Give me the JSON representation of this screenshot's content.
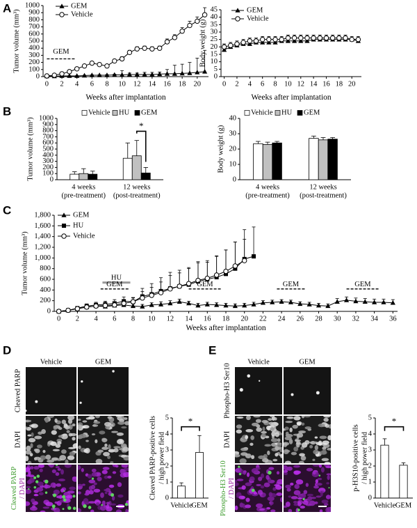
{
  "figure": {
    "panel_labels": [
      "A",
      "B",
      "C",
      "D",
      "E"
    ],
    "micrographs": [
      {
        "columns": [
          "Vehicle",
          "GEM"
        ],
        "rows": [
          "Cleaved PARP",
          "DAPI"
        ],
        "merge_labels": [
          "Cleaved PARP",
          "/ DAPI"
        ]
      },
      {
        "columns": [
          "Vehicle",
          "GEM"
        ],
        "rows": [
          "Phospho-H3 Ser10",
          "DAPI"
        ],
        "merge_labels": [
          "Phospho-H3 Ser10",
          "/ DAPI"
        ]
      }
    ]
  },
  "chart_data": [
    {
      "type": "line",
      "ylabel": "Tumor volume (mm³)",
      "xlabel": "Weeks after implantation",
      "x": [
        0,
        1,
        2,
        3,
        4,
        5,
        6,
        7,
        8,
        9,
        10,
        11,
        12,
        13,
        14,
        15,
        16,
        17,
        18,
        19,
        20,
        21
      ],
      "xlim": [
        -0.5,
        21.5
      ],
      "xticks": [
        0,
        2,
        4,
        6,
        8,
        10,
        12,
        14,
        16,
        18,
        20
      ],
      "ylim": [
        0,
        1000
      ],
      "yticks": [
        0,
        100,
        200,
        300,
        400,
        500,
        600,
        700,
        800,
        900,
        1000
      ],
      "series": [
        {
          "name": "GEM",
          "color": "#000000",
          "marker": "triangle",
          "values": [
            5,
            5,
            10,
            10,
            10,
            15,
            20,
            20,
            20,
            25,
            25,
            30,
            30,
            30,
            30,
            35,
            40,
            40,
            45,
            50,
            60,
            70
          ],
          "errors": [
            2,
            2,
            3,
            3,
            4,
            5,
            5,
            6,
            8,
            10,
            60,
            20,
            20,
            30,
            30,
            30,
            60,
            120,
            130,
            150,
            200,
            300
          ]
        },
        {
          "name": "Vehicle",
          "color": "#000000",
          "marker": "circle",
          "values": [
            10,
            20,
            40,
            70,
            110,
            150,
            190,
            170,
            150,
            220,
            250,
            340,
            390,
            400,
            390,
            400,
            490,
            550,
            640,
            720,
            780,
            870
          ],
          "errors": [
            3,
            5,
            8,
            10,
            15,
            15,
            20,
            20,
            20,
            25,
            30,
            30,
            30,
            30,
            30,
            30,
            40,
            40,
            50,
            60,
            60,
            100
          ]
        }
      ],
      "annotations": [
        "GEM"
      ]
    },
    {
      "type": "line",
      "ylabel": "Body weight (g)",
      "xlabel": "Weeks after implantation",
      "x": [
        0,
        1,
        2,
        3,
        4,
        5,
        6,
        7,
        8,
        9,
        10,
        11,
        12,
        13,
        14,
        15,
        16,
        17,
        18,
        19,
        20,
        21
      ],
      "xlim": [
        -0.5,
        21.5
      ],
      "xticks": [
        0,
        2,
        4,
        6,
        8,
        10,
        12,
        14,
        16,
        18,
        20
      ],
      "ylim": [
        0,
        45
      ],
      "yticks": [
        0,
        5,
        10,
        15,
        20,
        25,
        30,
        35,
        40,
        45
      ],
      "series": [
        {
          "name": "GEM",
          "color": "#000000",
          "marker": "triangle",
          "values": [
            18,
            20,
            21,
            22,
            22,
            23,
            23,
            23,
            23,
            24,
            24,
            24,
            24,
            24,
            25,
            25,
            25,
            25,
            25,
            25,
            25,
            24
          ],
          "errors": [
            1,
            1,
            1,
            1,
            1,
            1,
            1,
            1,
            1,
            1,
            1,
            1,
            1,
            1,
            1,
            1,
            1,
            1,
            1,
            1,
            1,
            1
          ]
        },
        {
          "name": "Vehicle",
          "color": "#000000",
          "marker": "circle",
          "values": [
            20,
            21,
            22,
            23,
            24,
            24,
            25,
            25,
            25,
            25,
            26,
            26,
            26,
            26,
            26,
            26,
            26,
            26,
            26,
            26,
            25,
            25
          ],
          "errors": [
            2,
            2,
            2,
            2,
            2,
            2,
            2,
            2,
            2,
            2,
            2,
            2,
            2,
            2,
            2,
            2,
            2,
            2,
            2,
            2,
            2,
            2
          ]
        }
      ]
    },
    {
      "type": "bar",
      "ylabel": "Tumor volume (mm³)",
      "categories": [
        "4 weeks",
        "12 weeks"
      ],
      "category_notes": [
        "(pre-treatment)",
        "(post-treatment)"
      ],
      "ylim": [
        0,
        1000
      ],
      "yticks": [
        0,
        100,
        200,
        300,
        400,
        500,
        600,
        700,
        800,
        900,
        1000
      ],
      "series": [
        {
          "name": "Vehicle",
          "color": "#ffffff",
          "values": [
            90,
            350
          ],
          "errors": [
            40,
            250
          ]
        },
        {
          "name": "HU",
          "color": "#c0c0c0",
          "values": [
            100,
            390
          ],
          "errors": [
            80,
            250
          ]
        },
        {
          "name": "GEM",
          "color": "#000000",
          "values": [
            90,
            110
          ],
          "errors": [
            50,
            90
          ]
        }
      ],
      "annotations": [
        "*"
      ]
    },
    {
      "type": "bar",
      "ylabel": "Body weight (g)",
      "categories": [
        "4 weeks",
        "12 weeks"
      ],
      "category_notes": [
        "(pre-treatment)",
        "(post-treatment)"
      ],
      "ylim": [
        0,
        40
      ],
      "yticks": [
        0,
        10,
        20,
        30,
        40
      ],
      "series": [
        {
          "name": "Vehicle",
          "color": "#ffffff",
          "values": [
            23.5,
            27
          ],
          "errors": [
            1.5,
            1.5
          ]
        },
        {
          "name": "HU",
          "color": "#c0c0c0",
          "values": [
            23,
            26
          ],
          "errors": [
            1.5,
            1.5
          ]
        },
        {
          "name": "GEM",
          "color": "#000000",
          "values": [
            24,
            26.5
          ],
          "errors": [
            1,
            1
          ]
        }
      ]
    },
    {
      "type": "line",
      "ylabel": "Tumor volume (mm³)",
      "xlabel": "Weeks after implantation",
      "x": [
        0,
        1,
        2,
        3,
        4,
        5,
        6,
        7,
        8,
        9,
        10,
        11,
        12,
        13,
        14,
        15,
        16,
        17,
        18,
        19,
        20,
        21,
        22,
        23,
        24,
        25,
        26,
        27,
        28,
        29,
        30,
        31,
        32,
        33,
        34,
        35,
        36
      ],
      "xlim": [
        -0.5,
        36.5
      ],
      "xticks": [
        0,
        2,
        4,
        6,
        8,
        10,
        12,
        14,
        16,
        18,
        20,
        22,
        24,
        26,
        28,
        30,
        32,
        34,
        36
      ],
      "ylim": [
        0,
        1800
      ],
      "yticks": [
        0,
        200,
        400,
        600,
        800,
        {
          "value": 1000,
          "label": "1,000"
        },
        {
          "value": 1200,
          "label": "1,200"
        },
        {
          "value": 1400,
          "label": "1,400"
        },
        {
          "value": 1600,
          "label": "1,600"
        },
        {
          "value": 1800,
          "label": "1,800"
        }
      ],
      "series": [
        {
          "name": "GEM",
          "color": "#000000",
          "marker": "triangle",
          "values": [
            0,
            20,
            50,
            80,
            100,
            90,
            110,
            120,
            100,
            90,
            120,
            130,
            150,
            180,
            150,
            110,
            130,
            120,
            110,
            100,
            110,
            130,
            160,
            170,
            180,
            170,
            140,
            130,
            110,
            100,
            180,
            210,
            190,
            180,
            170,
            170,
            160
          ],
          "errors": [
            0,
            10,
            20,
            30,
            40,
            40,
            40,
            40,
            40,
            40,
            40,
            50,
            50,
            50,
            40,
            40,
            40,
            40,
            40,
            40,
            40,
            40,
            40,
            40,
            40,
            40,
            40,
            40,
            40,
            40,
            60,
            60,
            60,
            60,
            60,
            60,
            60
          ]
        },
        {
          "name": "HU",
          "color": "#000000",
          "marker": "square",
          "values": [
            0,
            20,
            60,
            100,
            120,
            130,
            150,
            190,
            180,
            280,
            320,
            380,
            430,
            470,
            500,
            560,
            600,
            640,
            700,
            800,
            980,
            1030,
            null,
            null,
            null,
            null,
            null,
            null,
            null,
            null,
            null,
            null,
            null,
            null,
            null,
            null,
            null
          ],
          "errors": [
            0,
            10,
            20,
            40,
            50,
            60,
            70,
            80,
            80,
            150,
            200,
            250,
            300,
            300,
            300,
            350,
            350,
            400,
            450,
            500,
            550,
            550,
            null,
            null,
            null,
            null,
            null,
            null,
            null,
            null,
            null,
            null,
            null,
            null,
            null,
            null,
            null
          ]
        },
        {
          "name": "Vehicle",
          "color": "#000000",
          "marker": "circle",
          "values": [
            0,
            20,
            50,
            80,
            100,
            110,
            120,
            150,
            180,
            250,
            300,
            350,
            420,
            470,
            520,
            580,
            620,
            680,
            750,
            850,
            950,
            null,
            null,
            null,
            null,
            null,
            null,
            null,
            null,
            null,
            null,
            null,
            null,
            null,
            null,
            null,
            null
          ],
          "errors": [
            0,
            10,
            20,
            40,
            50,
            60,
            60,
            70,
            70,
            120,
            150,
            200,
            250,
            250,
            300,
            350,
            300,
            350,
            400,
            450,
            400,
            null,
            null,
            null,
            null,
            null,
            null,
            null,
            null,
            null,
            null,
            null,
            null,
            null,
            null,
            null,
            null
          ]
        }
      ],
      "annotations": [
        "HU",
        "GEM",
        "GEM",
        "GEM",
        "GEM"
      ]
    },
    {
      "type": "bar",
      "ylabel": [
        "Cleaved PARP-positive cells",
        "/ high power field"
      ],
      "categories": [
        "Vehicle",
        "GEM"
      ],
      "ylim": [
        0,
        5
      ],
      "yticks": [
        0,
        1,
        2,
        3,
        4,
        5
      ],
      "color": "#ffffff",
      "values": [
        0.75,
        2.85
      ],
      "errors": [
        0.2,
        1.05
      ],
      "annotations": [
        "*"
      ]
    },
    {
      "type": "bar",
      "ylabel": [
        "p-H3S10-positive cells",
        "/ high power field"
      ],
      "categories": [
        "Vehicle",
        "GEM"
      ],
      "ylim": [
        0,
        5
      ],
      "yticks": [
        0,
        1,
        2,
        3,
        4,
        5
      ],
      "color": "#ffffff",
      "values": [
        3.3,
        2.05
      ],
      "errors": [
        0.4,
        0.15
      ],
      "annotations": [
        "*"
      ]
    }
  ]
}
